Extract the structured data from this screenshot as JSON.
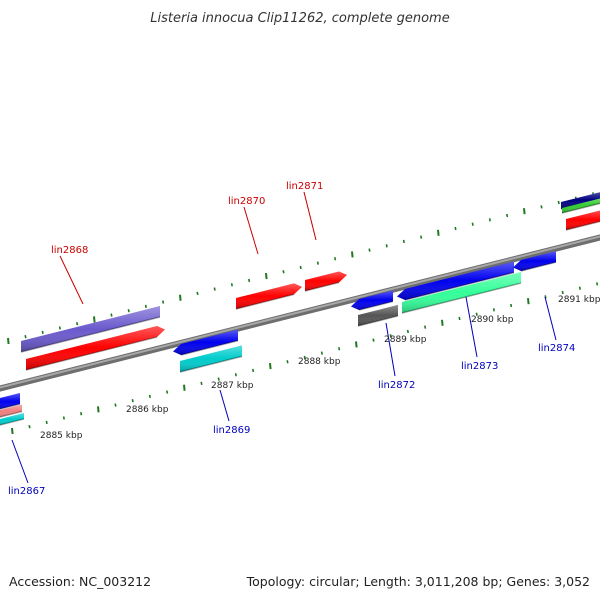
{
  "title": "Listeria innocua Clip11262, complete genome",
  "footer": {
    "accession": "Accession: NC_003212",
    "summary": "Topology: circular; Length: 3,011,208 bp; Genes: 3,052"
  },
  "colors": {
    "background": "#ffffff",
    "backbone": "#8c8c8c",
    "tick": "#1f7a1f",
    "forward_label": "#cc0000",
    "reverse_label": "#0000bb"
  },
  "scale_labels": [
    "2885 kbp",
    "2886 kbp",
    "2887 kbp",
    "2888 kbp",
    "2889 kbp",
    "2890 kbp",
    "2891 kbp"
  ],
  "genes": [
    {
      "name": "lin2867",
      "strand": "reverse"
    },
    {
      "name": "lin2868",
      "strand": "forward"
    },
    {
      "name": "lin2869",
      "strand": "reverse"
    },
    {
      "name": "lin2870",
      "strand": "forward"
    },
    {
      "name": "lin2871",
      "strand": "forward"
    },
    {
      "name": "lin2872",
      "strand": "reverse"
    },
    {
      "name": "lin2873",
      "strand": "reverse"
    },
    {
      "name": "lin2874",
      "strand": "reverse"
    }
  ],
  "feature_colors": [
    "#6a5acd",
    "#ff0000",
    "#0000ee",
    "#00cccc",
    "#555555",
    "#33ff99",
    "#000080",
    "#33cc33",
    "#f08080"
  ]
}
